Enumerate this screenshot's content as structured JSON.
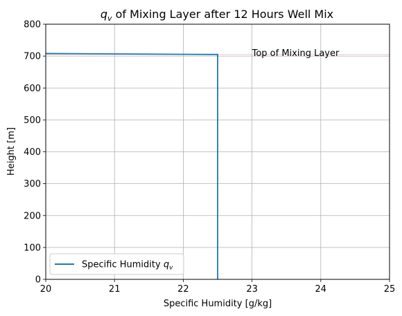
{
  "chart_data": {
    "type": "line",
    "title": "of Mixing Layer after 12 Hours Well Mix",
    "title_symbol": "q",
    "title_symbol_sub": "v",
    "xlabel": "Specific Humidity [g/kg]",
    "ylabel": "Height [m]",
    "xlim": [
      20,
      25
    ],
    "ylim": [
      0,
      800
    ],
    "xticks": [
      20,
      21,
      22,
      23,
      24,
      25
    ],
    "yticks": [
      0,
      100,
      200,
      300,
      400,
      500,
      600,
      700,
      800
    ],
    "grid": true,
    "legend_placement": "lower-left",
    "series": [
      {
        "name": "Specific Humidity",
        "name_symbol": "q",
        "name_symbol_sub": "v",
        "color": "#1f77b4",
        "x": [
          22.5,
          22.5,
          20.0
        ],
        "y": [
          0,
          705,
          708
        ]
      }
    ],
    "annotations": [
      {
        "text": "Top of Mixing Layer",
        "x": 23.0,
        "y": 710,
        "line_y": 705,
        "line_color": "#f4a6b6"
      }
    ]
  }
}
